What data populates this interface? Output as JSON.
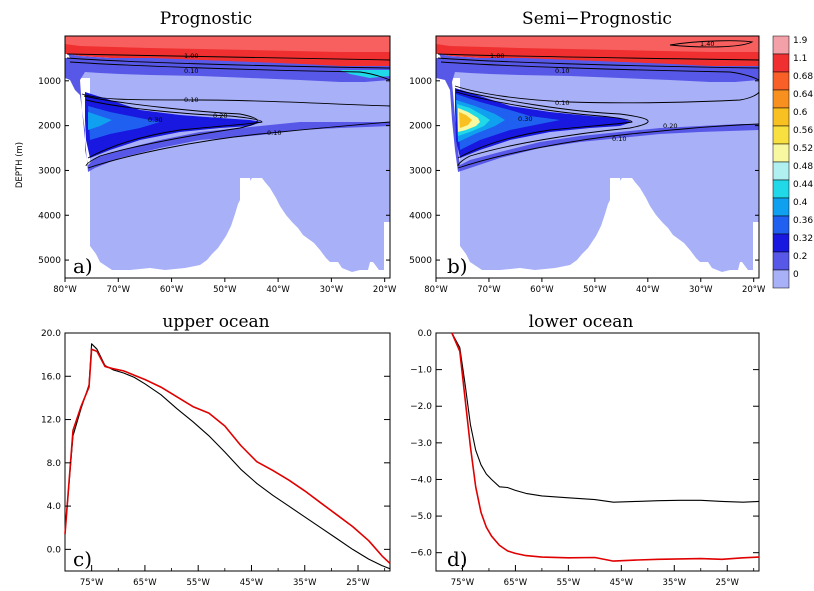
{
  "chart_data": [
    {
      "type": "heatmap",
      "title": "Prognostic",
      "panel_label": "a)",
      "ylabel": "DEPTH (m)",
      "x_ticks": [
        "80°W",
        "70°W",
        "60°W",
        "50°W",
        "40°W",
        "30°W",
        "20°W"
      ],
      "y_ticks": [
        "1000",
        "2000",
        "3000",
        "4000",
        "5000"
      ],
      "xlim": [
        -80,
        -19
      ],
      "ylim": [
        5400,
        0
      ],
      "contour_labels": [
        "1.00",
        "0.10",
        "0.10",
        "0.30",
        "0.20",
        "0.10"
      ]
    },
    {
      "type": "heatmap",
      "title": "Semi−Prognostic",
      "panel_label": "b)",
      "x_ticks": [
        "80°W",
        "70°W",
        "60°W",
        "50°W",
        "40°W",
        "30°W",
        "20°W"
      ],
      "y_ticks": [
        "1000",
        "2000",
        "3000",
        "4000",
        "5000"
      ],
      "xlim": [
        -80,
        -19
      ],
      "ylim": [
        5400,
        0
      ],
      "contour_labels": [
        "1.00",
        "1.40",
        "0.10",
        "0.10",
        "0.30",
        "0.20",
        "0.10"
      ]
    },
    {
      "type": "line",
      "title": "upper ocean",
      "panel_label": "c)",
      "x_ticks": [
        "75°W",
        "65°W",
        "55°W",
        "45°W",
        "35°W",
        "25°W"
      ],
      "y_ticks": [
        "20.0",
        "16.0",
        "12.0",
        "8.0",
        "4.0",
        "0.0"
      ],
      "xlim": [
        -80,
        -19
      ],
      "ylim": [
        -2,
        20
      ],
      "series": [
        {
          "color": "#000000",
          "x": [
            -80,
            -78.5,
            -77,
            -75.5,
            -75,
            -74,
            -72.5,
            -71,
            -69,
            -67,
            -65,
            -62,
            -59,
            -56,
            -53,
            -50,
            -47,
            -44,
            -41,
            -38,
            -35,
            -32,
            -29,
            -26,
            -23,
            -20.5,
            -19
          ],
          "y": [
            1.6,
            10.5,
            13.0,
            15.2,
            19.0,
            18.5,
            17.0,
            16.6,
            16.3,
            15.9,
            15.3,
            14.3,
            13.0,
            11.8,
            10.5,
            9.0,
            7.4,
            6.1,
            5.0,
            4.0,
            3.0,
            2.0,
            1.0,
            0.0,
            -0.9,
            -1.5,
            -1.8
          ]
        },
        {
          "color": "#e00000",
          "x": [
            -80,
            -78.5,
            -77,
            -75.5,
            -75,
            -74,
            -72.5,
            -71,
            -69,
            -67,
            -65,
            -62,
            -59,
            -56,
            -53,
            -50,
            -47,
            -44,
            -41,
            -38,
            -35,
            -32,
            -29,
            -26,
            -23,
            -20.5,
            -19
          ],
          "y": [
            1.4,
            11.0,
            13.2,
            15.0,
            18.5,
            18.3,
            16.9,
            16.7,
            16.5,
            16.1,
            15.7,
            15.0,
            14.1,
            13.2,
            12.6,
            11.4,
            9.6,
            8.1,
            7.3,
            6.4,
            5.4,
            4.3,
            3.2,
            2.1,
            0.8,
            -0.6,
            -1.3
          ]
        }
      ]
    },
    {
      "type": "line",
      "title": "lower ocean",
      "panel_label": "d)",
      "x_ticks": [
        "75°W",
        "65°W",
        "55°W",
        "45°W",
        "35°W",
        "25°W"
      ],
      "y_ticks": [
        "0.0",
        "−1.0",
        "−2.0",
        "−3.0",
        "−4.0",
        "−5.0",
        "−6.0"
      ],
      "xlim": [
        -80,
        -19
      ],
      "ylim": [
        -6.5,
        0
      ],
      "series": [
        {
          "color": "#000000",
          "x": [
            -77,
            -75.5,
            -74.5,
            -73.5,
            -72.5,
            -71.5,
            -70.5,
            -69.5,
            -68,
            -66.5,
            -65,
            -63,
            -60,
            -55,
            -50,
            -46.5,
            -42,
            -38,
            -34,
            -30,
            -26,
            -22,
            -19
          ],
          "y": [
            0.0,
            -0.4,
            -1.4,
            -2.5,
            -3.2,
            -3.6,
            -3.85,
            -4.0,
            -4.2,
            -4.22,
            -4.3,
            -4.38,
            -4.45,
            -4.5,
            -4.55,
            -4.62,
            -4.6,
            -4.58,
            -4.57,
            -4.57,
            -4.6,
            -4.62,
            -4.6
          ]
        },
        {
          "color": "#e00000",
          "x": [
            -77,
            -75.5,
            -74.5,
            -73.5,
            -72.5,
            -71.5,
            -70.5,
            -69.5,
            -68,
            -66.5,
            -65,
            -63,
            -60,
            -55,
            -50,
            -46.5,
            -42,
            -38,
            -34,
            -30,
            -26,
            -22,
            -19
          ],
          "y": [
            0.0,
            -0.5,
            -1.8,
            -3.1,
            -4.2,
            -4.9,
            -5.3,
            -5.55,
            -5.8,
            -5.95,
            -6.02,
            -6.08,
            -6.12,
            -6.14,
            -6.13,
            -6.23,
            -6.2,
            -6.18,
            -6.17,
            -6.16,
            -6.18,
            -6.14,
            -6.12
          ]
        }
      ]
    }
  ],
  "colorbar": {
    "labels": [
      "1.9",
      "1.1",
      "0.68",
      "0.64",
      "0.6",
      "0.56",
      "0.52",
      "0.48",
      "0.44",
      "0.4",
      "0.36",
      "0.32",
      "0.2",
      "0"
    ],
    "colors": [
      "#f4a0a8",
      "#f03030",
      "#f86028",
      "#f89020",
      "#f8c020",
      "#f8e040",
      "#f8f8a0",
      "#b0f0f0",
      "#20d8e8",
      "#10a0f0",
      "#2060f0",
      "#1818e0",
      "#5858e8",
      "#a8b0f8"
    ]
  }
}
